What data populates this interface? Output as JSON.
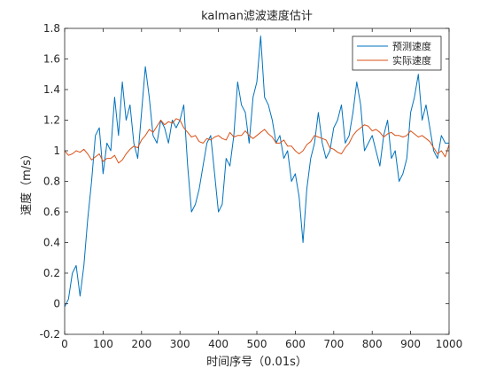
{
  "chart_data": {
    "type": "line",
    "title": "kalman滤波速度估计",
    "xlabel": "时间序号（0.01s）",
    "ylabel": "速度（m/s）",
    "xlim": [
      0,
      1000
    ],
    "ylim": [
      -0.2,
      1.8
    ],
    "x_ticks": [
      0,
      100,
      200,
      300,
      400,
      500,
      600,
      700,
      800,
      900,
      1000
    ],
    "y_ticks": [
      -0.2,
      0,
      0.2,
      0.4,
      0.6,
      0.8,
      1,
      1.2,
      1.4,
      1.6,
      1.8
    ],
    "grid": false,
    "legend_position": "top-right",
    "series": [
      {
        "name": "预测速度",
        "color": "#0072BD",
        "x": [
          0,
          10,
          20,
          30,
          40,
          50,
          60,
          70,
          80,
          90,
          100,
          110,
          120,
          130,
          140,
          150,
          160,
          170,
          180,
          190,
          200,
          210,
          220,
          230,
          240,
          250,
          260,
          270,
          280,
          290,
          300,
          310,
          320,
          330,
          340,
          350,
          360,
          370,
          380,
          390,
          400,
          410,
          420,
          430,
          440,
          450,
          460,
          470,
          480,
          490,
          500,
          510,
          520,
          530,
          540,
          550,
          560,
          570,
          580,
          590,
          600,
          610,
          620,
          630,
          640,
          650,
          660,
          670,
          680,
          690,
          700,
          710,
          720,
          730,
          740,
          750,
          760,
          770,
          780,
          790,
          800,
          810,
          820,
          830,
          840,
          850,
          860,
          870,
          880,
          890,
          900,
          910,
          920,
          930,
          940,
          950,
          960,
          970,
          980,
          990,
          1000
        ],
        "y": [
          -0.02,
          0.03,
          0.2,
          0.25,
          0.05,
          0.25,
          0.55,
          0.8,
          1.1,
          1.15,
          0.85,
          1.05,
          1.0,
          1.35,
          1.1,
          1.45,
          1.2,
          1.3,
          1.05,
          0.95,
          1.25,
          1.55,
          1.35,
          1.1,
          1.05,
          1.2,
          1.15,
          1.05,
          1.2,
          1.15,
          1.2,
          1.3,
          0.9,
          0.6,
          0.65,
          0.75,
          0.9,
          1.05,
          1.1,
          0.85,
          0.6,
          0.65,
          0.95,
          0.9,
          1.1,
          1.45,
          1.3,
          1.25,
          1.05,
          1.35,
          1.45,
          1.75,
          1.35,
          1.3,
          1.2,
          1.05,
          1.1,
          0.95,
          1.0,
          0.8,
          0.85,
          0.7,
          0.4,
          0.75,
          0.95,
          1.05,
          1.25,
          1.05,
          0.95,
          1.0,
          1.15,
          1.2,
          1.3,
          1.05,
          1.1,
          1.25,
          1.45,
          1.3,
          1.0,
          1.05,
          1.1,
          1.0,
          0.9,
          1.1,
          1.2,
          0.95,
          1.0,
          0.8,
          0.85,
          0.95,
          1.25,
          1.35,
          1.5,
          1.2,
          1.3,
          1.15,
          1.0,
          0.95,
          1.1,
          1.05,
          1.05
        ]
      },
      {
        "name": "实际速度",
        "color": "#D95319",
        "x": [
          0,
          10,
          20,
          30,
          40,
          50,
          60,
          70,
          80,
          90,
          100,
          110,
          120,
          130,
          140,
          150,
          160,
          170,
          180,
          190,
          200,
          210,
          220,
          230,
          240,
          250,
          260,
          270,
          280,
          290,
          300,
          310,
          320,
          330,
          340,
          350,
          360,
          370,
          380,
          390,
          400,
          410,
          420,
          430,
          440,
          450,
          460,
          470,
          480,
          490,
          500,
          510,
          520,
          530,
          540,
          550,
          560,
          570,
          580,
          590,
          600,
          610,
          620,
          630,
          640,
          650,
          660,
          670,
          680,
          690,
          700,
          710,
          720,
          730,
          740,
          750,
          760,
          770,
          780,
          790,
          800,
          810,
          820,
          830,
          840,
          850,
          860,
          870,
          880,
          890,
          900,
          910,
          920,
          930,
          940,
          950,
          960,
          970,
          980,
          990,
          1000
        ],
        "y": [
          1.0,
          0.97,
          0.98,
          1.0,
          0.99,
          1.01,
          0.98,
          0.94,
          0.96,
          0.98,
          0.93,
          0.95,
          0.95,
          0.97,
          0.92,
          0.94,
          0.98,
          1.01,
          1.03,
          1.02,
          1.07,
          1.1,
          1.14,
          1.12,
          1.16,
          1.2,
          1.17,
          1.19,
          1.18,
          1.21,
          1.2,
          1.15,
          1.12,
          1.09,
          1.1,
          1.06,
          1.05,
          1.08,
          1.07,
          1.09,
          1.1,
          1.08,
          1.07,
          1.12,
          1.09,
          1.1,
          1.1,
          1.13,
          1.1,
          1.08,
          1.1,
          1.12,
          1.14,
          1.11,
          1.09,
          1.05,
          1.05,
          1.07,
          1.03,
          1.03,
          1.0,
          0.98,
          1.0,
          1.04,
          1.06,
          1.1,
          1.09,
          1.08,
          1.07,
          1.02,
          1.01,
          0.99,
          0.98,
          1.02,
          1.05,
          1.1,
          1.13,
          1.15,
          1.17,
          1.16,
          1.13,
          1.14,
          1.12,
          1.09,
          1.11,
          1.12,
          1.1,
          1.1,
          1.09,
          1.1,
          1.13,
          1.11,
          1.09,
          1.1,
          1.08,
          1.06,
          1.02,
          0.98,
          1.0,
          0.96,
          1.04
        ]
      }
    ]
  }
}
